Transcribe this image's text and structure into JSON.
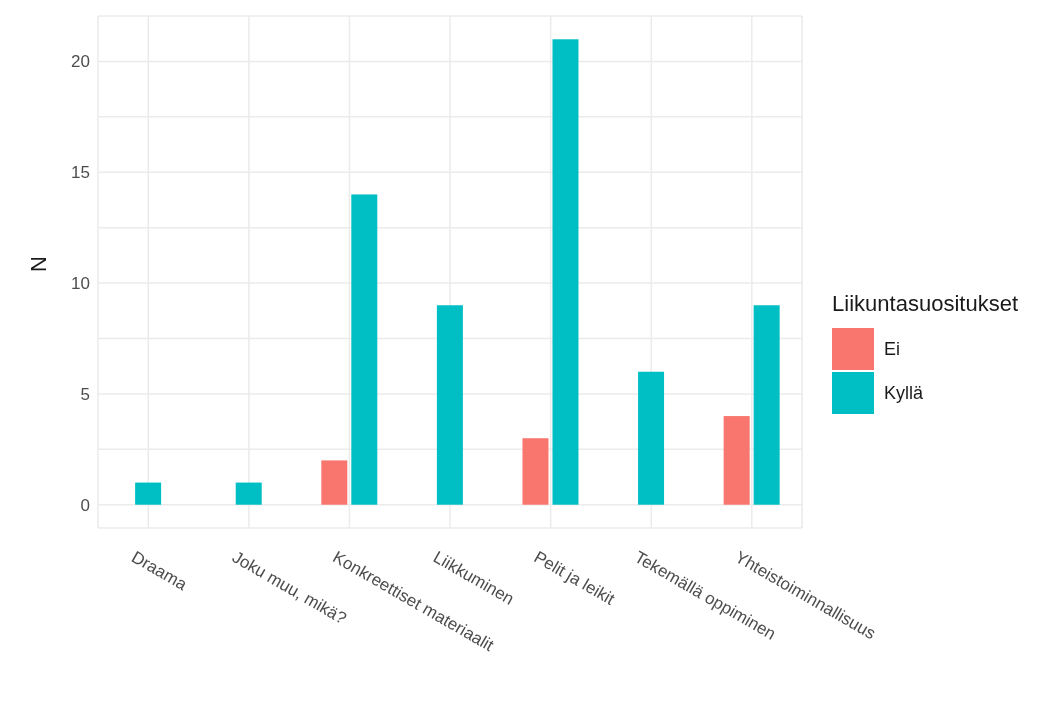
{
  "chart_data": {
    "type": "bar",
    "ylabel": "N",
    "legend_title": "Liikuntasuositukset",
    "categories": [
      "Draama",
      "Joku muu, mikä?",
      "Konkreettiset materiaalit",
      "Liikkuminen",
      "Pelit ja leikit",
      "Tekemällä oppiminen",
      "Yhteistoiminnallisuus"
    ],
    "series": [
      {
        "name": "Ei",
        "color": "#f8766d",
        "values": [
          null,
          null,
          2,
          null,
          3,
          null,
          4
        ]
      },
      {
        "name": "Kyllä",
        "color": "#00bfc4",
        "values": [
          1,
          1,
          14,
          9,
          21,
          6,
          9
        ]
      }
    ],
    "ylim": [
      -1.05,
      22.05
    ],
    "yticks": [
      0,
      {
        "value": 2.5,
        "label": null
      },
      5,
      {
        "value": 7.5,
        "label": null
      },
      10,
      {
        "value": 12.5,
        "label": null
      },
      15,
      {
        "value": 17.5,
        "label": null
      },
      20
    ],
    "grid": true,
    "legend": "right"
  }
}
